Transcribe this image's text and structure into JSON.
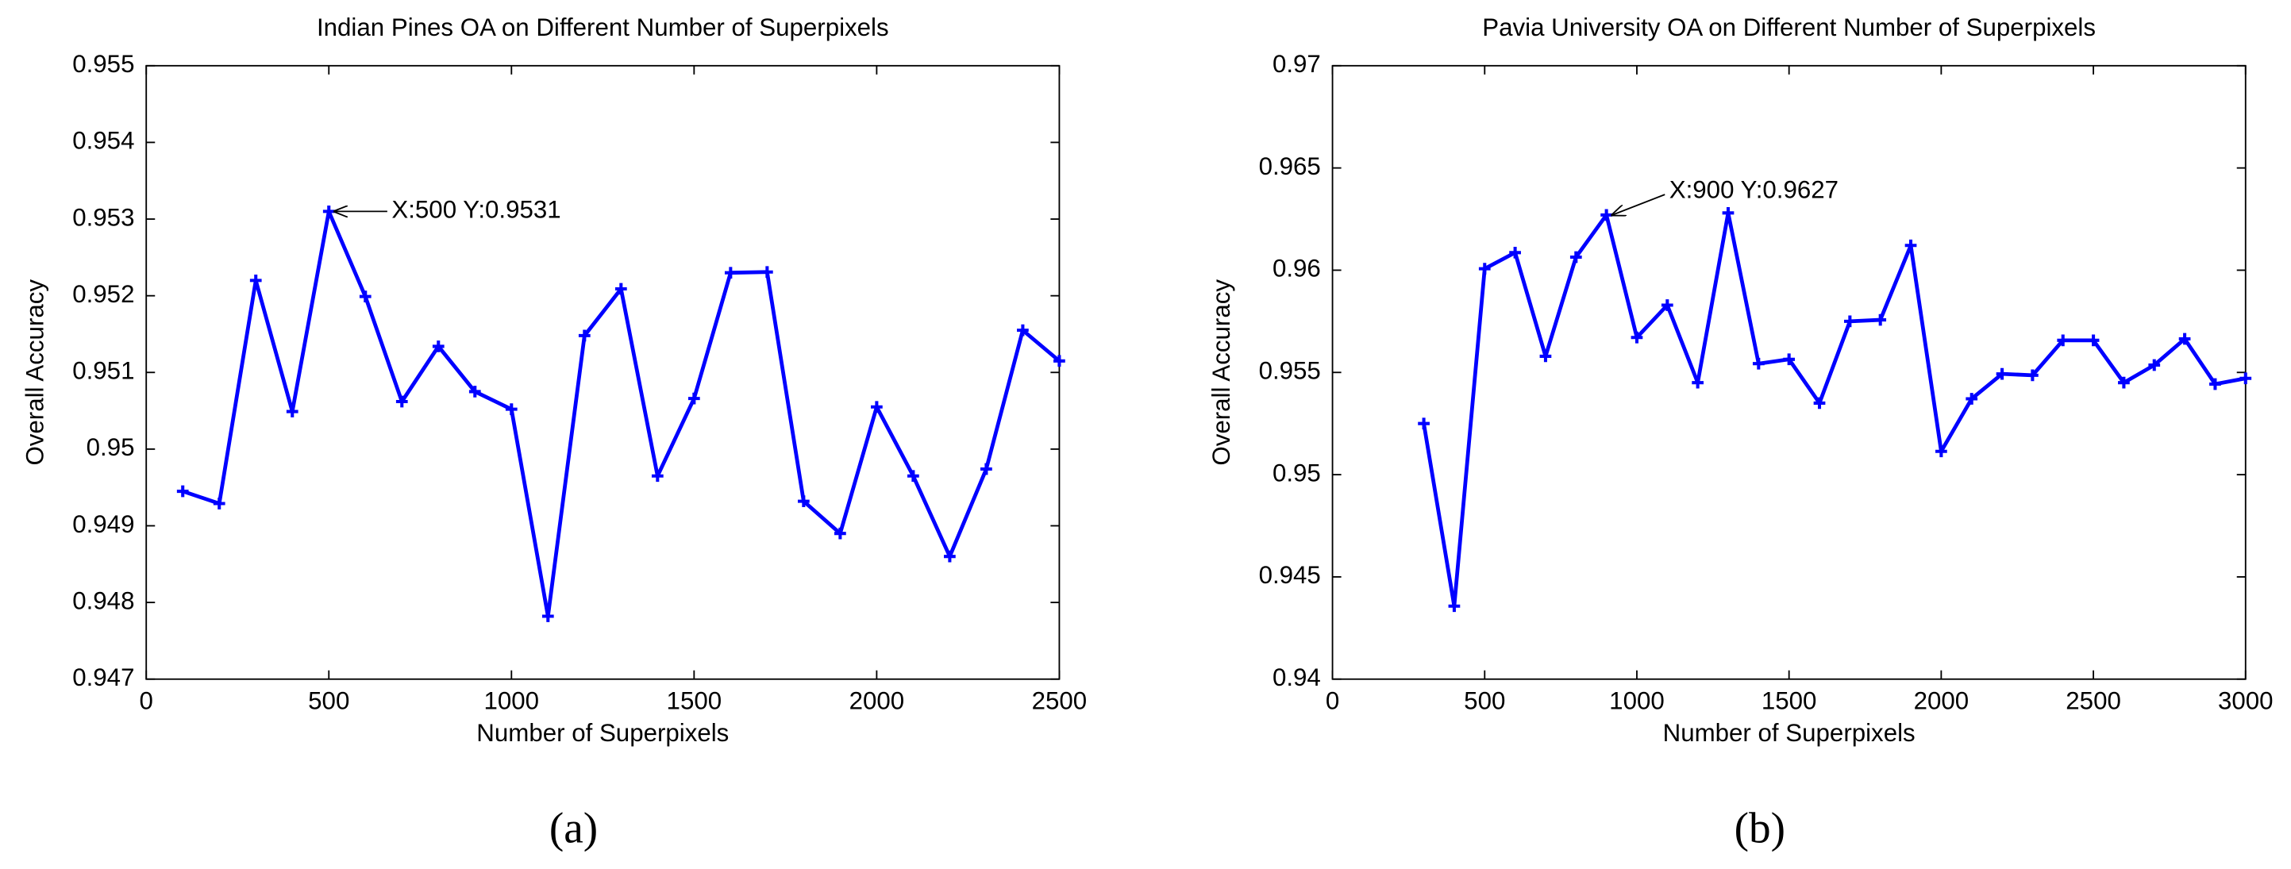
{
  "chart_data": [
    {
      "type": "line",
      "title": "Indian Pines OA on Different Number of Superpixels",
      "x_label": "Number of Superpixels",
      "y_label": "Overall Accuracy",
      "caption": "(a)",
      "x": [
        100,
        200,
        300,
        400,
        500,
        600,
        700,
        800,
        900,
        1000,
        1100,
        1200,
        1300,
        1400,
        1500,
        1600,
        1700,
        1800,
        1900,
        2000,
        2100,
        2200,
        2300,
        2400,
        2500
      ],
      "series": [
        {
          "color": "#0000ff",
          "values": [
            0.94945,
            0.94929,
            0.9522,
            0.95049,
            0.9531,
            0.95199,
            0.95062,
            0.95134,
            0.95075,
            0.95052,
            0.94782,
            0.95148,
            0.95209,
            0.94965,
            0.95066,
            0.9523,
            0.95231,
            0.94932,
            0.9489,
            0.95055,
            0.94965,
            0.9486,
            0.94974,
            0.95155,
            0.95115
          ]
        }
      ],
      "xlim": [
        0,
        2500
      ],
      "xticks": [
        0,
        500,
        1000,
        1500,
        2000,
        2500
      ],
      "ylim": [
        0.947,
        0.955
      ],
      "yticks": [
        0.947,
        0.948,
        0.949,
        0.95,
        0.951,
        0.952,
        0.953,
        0.954,
        0.955
      ],
      "annotation": {
        "text": "X:500 Y:0.9531",
        "x": 500,
        "y": 0.9531
      }
    },
    {
      "type": "line",
      "title": "Pavia University OA on Different Number of Superpixels",
      "x_label": "Number of Superpixels",
      "y_label": "Overall Accuracy",
      "caption": "(b)",
      "x": [
        300,
        400,
        500,
        600,
        700,
        800,
        900,
        1000,
        1100,
        1200,
        1300,
        1400,
        1500,
        1600,
        1700,
        1800,
        1900,
        2000,
        2100,
        2200,
        2300,
        2400,
        2500,
        2600,
        2700,
        2800,
        2900,
        3000
      ],
      "series": [
        {
          "color": "#0000ff",
          "values": [
            0.9525,
            0.94357,
            0.96007,
            0.96086,
            0.95579,
            0.96064,
            0.9627,
            0.95671,
            0.95829,
            0.9545,
            0.9628,
            0.95543,
            0.95564,
            0.9535,
            0.9575,
            0.95757,
            0.96121,
            0.95114,
            0.95371,
            0.95493,
            0.95486,
            0.95657,
            0.95657,
            0.9545,
            0.95536,
            0.95664,
            0.95443,
            0.95471
          ]
        }
      ],
      "xlim": [
        0,
        3000
      ],
      "xticks": [
        0,
        500,
        1000,
        1500,
        2000,
        2500,
        3000
      ],
      "ylim": [
        0.94,
        0.97
      ],
      "yticks": [
        0.94,
        0.945,
        0.95,
        0.955,
        0.96,
        0.965,
        0.97
      ],
      "annotation": {
        "text": "X:900 Y:0.9627",
        "x": 900,
        "y": 0.9627
      }
    }
  ]
}
